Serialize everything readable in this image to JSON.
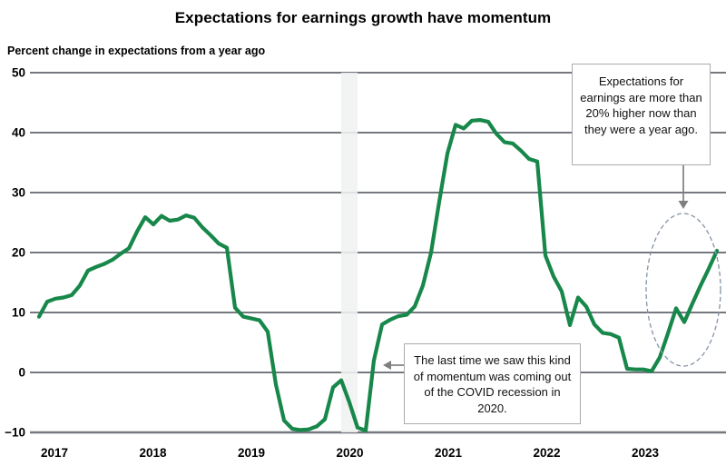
{
  "title": "Expectations for earnings growth have momentum",
  "subtitle": "Percent change in expectations from a year ago",
  "annotations": [
    {
      "id": "earnings-note",
      "text": "Expectations for earnings are more than 20% higher now than they were a year ago."
    },
    {
      "id": "covid-note",
      "text": "The last time we saw this kind of momentum was coming out of the COVID recession in 2020."
    }
  ],
  "colors": {
    "line": "#17874a",
    "grid": "#75797f",
    "band": "#f0f1f1",
    "note_border": "#ababab",
    "arrow": "#7f7f7f",
    "ellipse": "#8593a6",
    "text": "#000000"
  },
  "chart_data": {
    "type": "line",
    "title": "Expectations for earnings growth have momentum",
    "ylabel": "Percent change in expectations from a year ago",
    "xlabel": "",
    "grid": "horizontal",
    "legend": "none",
    "ylim": [
      -10,
      50
    ],
    "y_ticks": [
      50,
      40,
      30,
      20,
      10,
      0,
      -10
    ],
    "x_tick_labels": [
      "2017",
      "2018",
      "2019",
      "2020",
      "2021",
      "2022",
      "2023"
    ],
    "x_start": "2017-01",
    "x_freq": "monthly",
    "recession_band": {
      "label": "COVID recession",
      "from_month": "2020-02",
      "to_month": "2020-04"
    },
    "highlight": {
      "label": "current momentum (late 2023)"
    },
    "series": [
      {
        "name": "Percent change in expectations from a year ago",
        "values": [
          9.3,
          11.8,
          12.3,
          12.5,
          12.9,
          14.5,
          17.0,
          17.6,
          18.1,
          18.8,
          19.8,
          20.7,
          23.5,
          25.9,
          24.7,
          26.1,
          25.3,
          25.5,
          26.2,
          25.8,
          24.2,
          22.9,
          21.5,
          20.8,
          10.8,
          9.3,
          9.0,
          8.7,
          6.8,
          -2.0,
          -8.0,
          -9.4,
          -9.6,
          -9.5,
          -9.0,
          -7.8,
          -2.5,
          -1.3,
          -5.0,
          -9.2,
          -9.7,
          2.0,
          8.0,
          8.8,
          9.4,
          9.6,
          11.0,
          14.5,
          20.0,
          28.5,
          36.5,
          41.3,
          40.7,
          42.0,
          42.1,
          41.8,
          39.8,
          38.4,
          38.2,
          37.0,
          35.6,
          35.2,
          19.5,
          16.0,
          13.5,
          7.9,
          12.5,
          11.0,
          8.0,
          6.6,
          6.4,
          5.8,
          0.6,
          0.5,
          0.5,
          0.2,
          2.5,
          6.5,
          10.7,
          8.4,
          11.5,
          14.5,
          17.3,
          20.3
        ]
      }
    ]
  }
}
